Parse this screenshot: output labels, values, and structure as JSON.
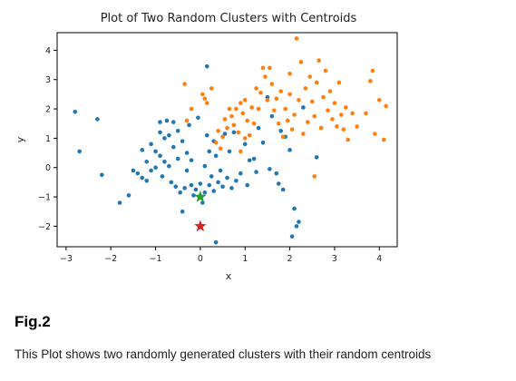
{
  "caption": {
    "label": "Fig.2",
    "text": "This Plot shows two randomly generated clusters with their random centroids"
  },
  "chart_data": {
    "type": "scatter",
    "title": "Plot of Two Random Clusters with Centroids",
    "xlabel": "x",
    "ylabel": "y",
    "xlim": [
      -3.2,
      4.4
    ],
    "ylim": [
      -2.7,
      4.6
    ],
    "xticks": [
      -3,
      -2,
      -1,
      0,
      1,
      2,
      3,
      4
    ],
    "yticks": [
      -2,
      -1,
      0,
      1,
      2,
      3,
      4
    ],
    "grid": false,
    "series": [
      {
        "color": "#1f77b4",
        "points": [
          [
            -2.8,
            1.9
          ],
          [
            -2.7,
            0.55
          ],
          [
            -2.3,
            1.65
          ],
          [
            -2.2,
            -0.25
          ],
          [
            -1.8,
            -1.2
          ],
          [
            -1.6,
            -0.95
          ],
          [
            -1.5,
            -0.1
          ],
          [
            -1.4,
            -0.2
          ],
          [
            -1.3,
            0.6
          ],
          [
            -1.3,
            -0.35
          ],
          [
            -1.2,
            -0.45
          ],
          [
            -1.2,
            0.2
          ],
          [
            -1.1,
            0.8
          ],
          [
            -1.1,
            -0.1
          ],
          [
            -1.0,
            0.55
          ],
          [
            -1.0,
            0.0
          ],
          [
            -0.9,
            1.55
          ],
          [
            -0.9,
            1.2
          ],
          [
            -0.9,
            0.4
          ],
          [
            -0.85,
            -0.3
          ],
          [
            -0.8,
            1.0
          ],
          [
            -0.8,
            0.2
          ],
          [
            -0.75,
            1.6
          ],
          [
            -0.7,
            1.1
          ],
          [
            -0.7,
            0.05
          ],
          [
            -0.65,
            -0.5
          ],
          [
            -0.6,
            1.55
          ],
          [
            -0.6,
            0.7
          ],
          [
            -0.55,
            -0.65
          ],
          [
            -0.5,
            1.25
          ],
          [
            -0.5,
            0.3
          ],
          [
            -0.45,
            -0.85
          ],
          [
            -0.4,
            -1.5
          ],
          [
            -0.4,
            0.9
          ],
          [
            -0.35,
            -0.7
          ],
          [
            -0.3,
            0.5
          ],
          [
            -0.3,
            -0.1
          ],
          [
            -0.25,
            1.45
          ],
          [
            -0.2,
            -0.6
          ],
          [
            -0.2,
            0.25
          ],
          [
            -0.15,
            -0.95
          ],
          [
            -0.1,
            -0.75
          ],
          [
            -0.05,
            1.7
          ],
          [
            0.0,
            -0.55
          ],
          [
            0.05,
            -1.2
          ],
          [
            0.1,
            -0.85
          ],
          [
            0.1,
            0.05
          ],
          [
            0.15,
            3.45
          ],
          [
            0.15,
            1.1
          ],
          [
            0.2,
            -0.6
          ],
          [
            0.2,
            0.55
          ],
          [
            0.25,
            -0.3
          ],
          [
            0.3,
            -0.8
          ],
          [
            0.3,
            0.9
          ],
          [
            0.35,
            -2.55
          ],
          [
            0.35,
            0.4
          ],
          [
            0.4,
            -0.5
          ],
          [
            0.45,
            -0.1
          ],
          [
            0.5,
            -0.65
          ],
          [
            0.55,
            1.15
          ],
          [
            0.6,
            -0.35
          ],
          [
            0.65,
            0.55
          ],
          [
            0.7,
            -0.7
          ],
          [
            0.75,
            1.2
          ],
          [
            0.8,
            -0.45
          ],
          [
            0.9,
            -0.2
          ],
          [
            1.0,
            0.8
          ],
          [
            1.05,
            -0.6
          ],
          [
            1.1,
            0.25
          ],
          [
            1.2,
            0.3
          ],
          [
            1.25,
            -0.15
          ],
          [
            1.3,
            1.35
          ],
          [
            1.4,
            0.85
          ],
          [
            1.5,
            2.4
          ],
          [
            1.55,
            -0.05
          ],
          [
            1.6,
            1.75
          ],
          [
            1.7,
            -0.2
          ],
          [
            1.75,
            -0.55
          ],
          [
            1.8,
            1.25
          ],
          [
            1.85,
            -0.75
          ],
          [
            1.9,
            1.05
          ],
          [
            2.0,
            0.6
          ],
          [
            2.05,
            -2.35
          ],
          [
            2.1,
            -1.4
          ],
          [
            2.15,
            -2.0
          ],
          [
            2.2,
            -1.85
          ],
          [
            2.3,
            2.05
          ],
          [
            2.6,
            0.35
          ],
          [
            2.7,
            1.35
          ]
        ]
      },
      {
        "color": "#ff7f0e",
        "points": [
          [
            -0.35,
            2.85
          ],
          [
            -0.3,
            1.6
          ],
          [
            -0.2,
            2.0
          ],
          [
            0.05,
            2.5
          ],
          [
            0.1,
            2.35
          ],
          [
            0.15,
            2.2
          ],
          [
            0.25,
            2.7
          ],
          [
            0.35,
            0.85
          ],
          [
            0.4,
            1.25
          ],
          [
            0.45,
            0.65
          ],
          [
            0.5,
            1.05
          ],
          [
            0.55,
            1.65
          ],
          [
            0.6,
            1.35
          ],
          [
            0.65,
            2.0
          ],
          [
            0.7,
            1.75
          ],
          [
            0.75,
            1.45
          ],
          [
            0.8,
            2.0
          ],
          [
            0.85,
            1.2
          ],
          [
            0.9,
            2.2
          ],
          [
            0.95,
            1.85
          ],
          [
            1.0,
            1.0
          ],
          [
            1.0,
            2.3
          ],
          [
            1.05,
            1.6
          ],
          [
            1.1,
            1.1
          ],
          [
            1.15,
            2.05
          ],
          [
            1.2,
            1.5
          ],
          [
            1.25,
            2.7
          ],
          [
            1.3,
            2.0
          ],
          [
            1.35,
            2.55
          ],
          [
            1.4,
            3.4
          ],
          [
            1.45,
            3.1
          ],
          [
            1.5,
            2.3
          ],
          [
            1.55,
            3.4
          ],
          [
            1.6,
            2.85
          ],
          [
            1.65,
            1.95
          ],
          [
            1.7,
            2.35
          ],
          [
            1.75,
            1.5
          ],
          [
            1.8,
            2.6
          ],
          [
            1.85,
            1.05
          ],
          [
            1.9,
            2.0
          ],
          [
            1.95,
            1.6
          ],
          [
            2.0,
            3.2
          ],
          [
            2.0,
            2.5
          ],
          [
            2.05,
            1.3
          ],
          [
            2.1,
            1.8
          ],
          [
            2.15,
            4.4
          ],
          [
            2.2,
            2.3
          ],
          [
            2.25,
            3.6
          ],
          [
            2.3,
            1.15
          ],
          [
            2.35,
            2.7
          ],
          [
            2.4,
            1.55
          ],
          [
            2.45,
            3.1
          ],
          [
            2.5,
            2.25
          ],
          [
            2.55,
            1.75
          ],
          [
            2.6,
            2.9
          ],
          [
            2.65,
            3.65
          ],
          [
            2.7,
            1.35
          ],
          [
            2.75,
            2.4
          ],
          [
            2.8,
            3.3
          ],
          [
            2.85,
            1.95
          ],
          [
            2.9,
            2.6
          ],
          [
            2.95,
            1.65
          ],
          [
            3.0,
            2.2
          ],
          [
            3.05,
            1.4
          ],
          [
            3.1,
            2.9
          ],
          [
            3.15,
            1.8
          ],
          [
            3.2,
            1.3
          ],
          [
            3.25,
            2.05
          ],
          [
            3.3,
            0.95
          ],
          [
            3.4,
            1.85
          ],
          [
            3.5,
            1.4
          ],
          [
            3.7,
            1.85
          ],
          [
            3.8,
            2.95
          ],
          [
            3.85,
            3.3
          ],
          [
            3.9,
            1.15
          ],
          [
            4.0,
            2.3
          ],
          [
            4.1,
            0.95
          ],
          [
            4.15,
            2.1
          ],
          [
            2.55,
            -0.3
          ],
          [
            0.9,
            0.55
          ]
        ]
      }
    ],
    "centroids": [
      {
        "color": "#2ca02c",
        "x": 0.0,
        "y": -1.0,
        "marker": "star"
      },
      {
        "color": "#d62728",
        "x": 0.0,
        "y": -2.0,
        "marker": "star"
      }
    ]
  }
}
